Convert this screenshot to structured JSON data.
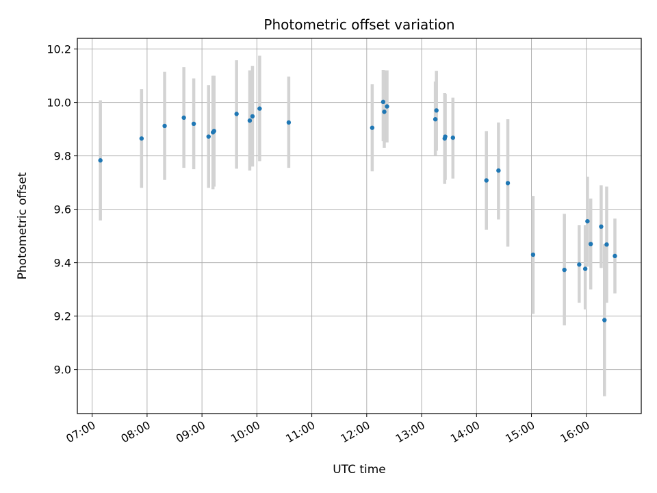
{
  "chart_data": {
    "type": "scatter",
    "title": "Photometric offset variation",
    "xlabel": "UTC time",
    "ylabel": "Photometric offset",
    "x_unit": "hours (UTC)",
    "xlim": [
      6.73,
      17.0
    ],
    "ylim": [
      8.835,
      10.24
    ],
    "x_ticks": [
      7,
      8,
      9,
      10,
      11,
      12,
      13,
      14,
      15,
      16
    ],
    "x_tick_labels": [
      "07:00",
      "08:00",
      "09:00",
      "10:00",
      "11:00",
      "12:00",
      "13:00",
      "14:00",
      "15:00",
      "16:00"
    ],
    "y_ticks": [
      9.0,
      9.2,
      9.4,
      9.6,
      9.8,
      10.0,
      10.2
    ],
    "y_tick_labels": [
      "9.0",
      "9.2",
      "9.4",
      "9.6",
      "9.8",
      "10.0",
      "10.2"
    ],
    "grid": true,
    "marker_color": "#1f77b4",
    "errorbar_color": "#d3d3d3",
    "points": [
      {
        "x": 7.15,
        "y": 9.783,
        "lo": 9.558,
        "hi": 10.008
      },
      {
        "x": 7.9,
        "y": 9.865,
        "lo": 9.68,
        "hi": 10.05
      },
      {
        "x": 8.32,
        "y": 9.912,
        "lo": 9.71,
        "hi": 10.115
      },
      {
        "x": 8.67,
        "y": 9.943,
        "lo": 9.755,
        "hi": 10.132
      },
      {
        "x": 8.85,
        "y": 9.92,
        "lo": 9.75,
        "hi": 10.09
      },
      {
        "x": 9.12,
        "y": 9.872,
        "lo": 9.68,
        "hi": 10.065
      },
      {
        "x": 9.2,
        "y": 9.888,
        "lo": 9.675,
        "hi": 10.1
      },
      {
        "x": 9.22,
        "y": 9.893,
        "lo": 9.685,
        "hi": 10.1
      },
      {
        "x": 9.63,
        "y": 9.957,
        "lo": 9.752,
        "hi": 10.158
      },
      {
        "x": 9.87,
        "y": 9.932,
        "lo": 9.745,
        "hi": 10.12
      },
      {
        "x": 9.92,
        "y": 9.948,
        "lo": 9.76,
        "hi": 10.137
      },
      {
        "x": 10.05,
        "y": 9.977,
        "lo": 9.78,
        "hi": 10.175
      },
      {
        "x": 10.58,
        "y": 9.925,
        "lo": 9.755,
        "hi": 10.097
      },
      {
        "x": 12.1,
        "y": 9.905,
        "lo": 9.742,
        "hi": 10.068
      },
      {
        "x": 12.3,
        "y": 10.002,
        "lo": 9.855,
        "hi": 10.122
      },
      {
        "x": 12.32,
        "y": 9.965,
        "lo": 9.83,
        "hi": 10.12
      },
      {
        "x": 12.37,
        "y": 9.985,
        "lo": 9.85,
        "hi": 10.12
      },
      {
        "x": 13.25,
        "y": 9.937,
        "lo": 9.8,
        "hi": 10.078
      },
      {
        "x": 13.27,
        "y": 9.97,
        "lo": 9.82,
        "hi": 10.118
      },
      {
        "x": 13.42,
        "y": 9.865,
        "lo": 9.695,
        "hi": 10.035
      },
      {
        "x": 13.43,
        "y": 9.872,
        "lo": 9.71,
        "hi": 10.032
      },
      {
        "x": 13.57,
        "y": 9.868,
        "lo": 9.715,
        "hi": 10.018
      },
      {
        "x": 14.18,
        "y": 9.708,
        "lo": 9.523,
        "hi": 9.893
      },
      {
        "x": 14.4,
        "y": 9.745,
        "lo": 9.562,
        "hi": 9.925
      },
      {
        "x": 14.57,
        "y": 9.698,
        "lo": 9.46,
        "hi": 9.937
      },
      {
        "x": 15.03,
        "y": 9.43,
        "lo": 9.208,
        "hi": 9.65
      },
      {
        "x": 15.6,
        "y": 9.373,
        "lo": 9.165,
        "hi": 9.583
      },
      {
        "x": 15.87,
        "y": 9.393,
        "lo": 9.25,
        "hi": 9.54
      },
      {
        "x": 15.98,
        "y": 9.377,
        "lo": 9.225,
        "hi": 9.54
      },
      {
        "x": 16.02,
        "y": 9.555,
        "lo": 9.385,
        "hi": 9.722
      },
      {
        "x": 16.08,
        "y": 9.47,
        "lo": 9.3,
        "hi": 9.64
      },
      {
        "x": 16.27,
        "y": 9.535,
        "lo": 9.38,
        "hi": 9.69
      },
      {
        "x": 16.33,
        "y": 9.185,
        "lo": 8.9,
        "hi": 9.47
      },
      {
        "x": 16.37,
        "y": 9.468,
        "lo": 9.25,
        "hi": 9.685
      },
      {
        "x": 16.52,
        "y": 9.425,
        "lo": 9.285,
        "hi": 9.565
      }
    ]
  }
}
